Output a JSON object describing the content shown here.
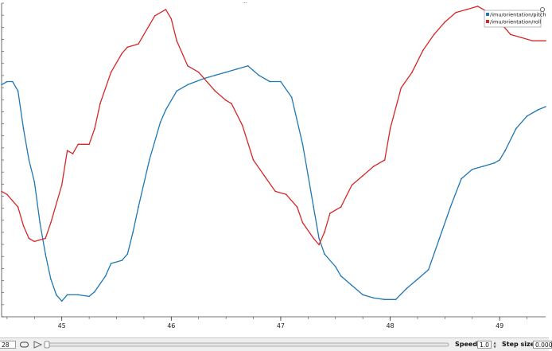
{
  "chart_data": {
    "type": "line",
    "title": "",
    "xlabel": "",
    "ylabel": "",
    "xlim": [
      44.45,
      49.42
    ],
    "ylim": [
      0,
      1
    ],
    "x_ticks": [
      "45",
      "46",
      "47",
      "48",
      "49"
    ],
    "grid": false,
    "legend_position": "top-right",
    "series": [
      {
        "name": "/imu/orientation/pitch",
        "color": "#1f77b4",
        "points": [
          [
            44.45,
            0.74
          ],
          [
            44.5,
            0.75
          ],
          [
            44.55,
            0.75
          ],
          [
            44.6,
            0.72
          ],
          [
            44.65,
            0.6
          ],
          [
            44.7,
            0.5
          ],
          [
            44.75,
            0.43
          ],
          [
            44.8,
            0.3
          ],
          [
            44.85,
            0.2
          ],
          [
            44.9,
            0.12
          ],
          [
            44.95,
            0.07
          ],
          [
            45.0,
            0.05
          ],
          [
            45.05,
            0.07
          ],
          [
            45.15,
            0.07
          ],
          [
            45.25,
            0.065
          ],
          [
            45.3,
            0.08
          ],
          [
            45.4,
            0.13
          ],
          [
            45.45,
            0.17
          ],
          [
            45.55,
            0.18
          ],
          [
            45.6,
            0.2
          ],
          [
            45.65,
            0.27
          ],
          [
            45.7,
            0.35
          ],
          [
            45.8,
            0.5
          ],
          [
            45.9,
            0.62
          ],
          [
            45.95,
            0.66
          ],
          [
            46.05,
            0.72
          ],
          [
            46.15,
            0.74
          ],
          [
            46.3,
            0.76
          ],
          [
            46.4,
            0.77
          ],
          [
            46.5,
            0.78
          ],
          [
            46.6,
            0.79
          ],
          [
            46.7,
            0.8
          ],
          [
            46.8,
            0.77
          ],
          [
            46.9,
            0.75
          ],
          [
            47.0,
            0.75
          ],
          [
            47.1,
            0.7
          ],
          [
            47.2,
            0.55
          ],
          [
            47.25,
            0.45
          ],
          [
            47.3,
            0.35
          ],
          [
            47.35,
            0.25
          ],
          [
            47.4,
            0.2
          ],
          [
            47.5,
            0.16
          ],
          [
            47.55,
            0.13
          ],
          [
            47.65,
            0.1
          ],
          [
            47.75,
            0.07
          ],
          [
            47.85,
            0.06
          ],
          [
            47.95,
            0.055
          ],
          [
            48.05,
            0.055
          ],
          [
            48.15,
            0.09
          ],
          [
            48.25,
            0.12
          ],
          [
            48.35,
            0.15
          ],
          [
            48.45,
            0.25
          ],
          [
            48.55,
            0.35
          ],
          [
            48.65,
            0.44
          ],
          [
            48.75,
            0.47
          ],
          [
            48.85,
            0.48
          ],
          [
            48.95,
            0.49
          ],
          [
            49.0,
            0.5
          ],
          [
            49.05,
            0.53
          ],
          [
            49.15,
            0.6
          ],
          [
            49.25,
            0.64
          ],
          [
            49.35,
            0.66
          ],
          [
            49.42,
            0.67
          ]
        ]
      },
      {
        "name": "/imu/orientation/roll",
        "color": "#d62728",
        "points": [
          [
            44.45,
            0.4
          ],
          [
            44.5,
            0.39
          ],
          [
            44.6,
            0.35
          ],
          [
            44.65,
            0.29
          ],
          [
            44.7,
            0.25
          ],
          [
            44.75,
            0.24
          ],
          [
            44.85,
            0.25
          ],
          [
            44.9,
            0.3
          ],
          [
            45.0,
            0.42
          ],
          [
            45.05,
            0.53
          ],
          [
            45.1,
            0.52
          ],
          [
            45.15,
            0.55
          ],
          [
            45.25,
            0.55
          ],
          [
            45.3,
            0.6
          ],
          [
            45.35,
            0.68
          ],
          [
            45.45,
            0.78
          ],
          [
            45.55,
            0.84
          ],
          [
            45.6,
            0.86
          ],
          [
            45.7,
            0.87
          ],
          [
            45.8,
            0.93
          ],
          [
            45.85,
            0.96
          ],
          [
            45.95,
            0.98
          ],
          [
            46.0,
            0.95
          ],
          [
            46.05,
            0.88
          ],
          [
            46.15,
            0.8
          ],
          [
            46.25,
            0.78
          ],
          [
            46.4,
            0.72
          ],
          [
            46.5,
            0.69
          ],
          [
            46.55,
            0.68
          ],
          [
            46.65,
            0.61
          ],
          [
            46.75,
            0.5
          ],
          [
            46.85,
            0.45
          ],
          [
            46.95,
            0.4
          ],
          [
            47.05,
            0.39
          ],
          [
            47.15,
            0.35
          ],
          [
            47.2,
            0.3
          ],
          [
            47.3,
            0.25
          ],
          [
            47.35,
            0.23
          ],
          [
            47.4,
            0.27
          ],
          [
            47.45,
            0.33
          ],
          [
            47.55,
            0.35
          ],
          [
            47.65,
            0.42
          ],
          [
            47.75,
            0.45
          ],
          [
            47.85,
            0.48
          ],
          [
            47.95,
            0.5
          ],
          [
            48.0,
            0.6
          ],
          [
            48.1,
            0.73
          ],
          [
            48.2,
            0.78
          ],
          [
            48.3,
            0.85
          ],
          [
            48.4,
            0.9
          ],
          [
            48.5,
            0.94
          ],
          [
            48.6,
            0.97
          ],
          [
            48.7,
            0.98
          ],
          [
            48.8,
            0.99
          ],
          [
            48.9,
            0.97
          ],
          [
            49.0,
            0.94
          ],
          [
            49.1,
            0.9
          ],
          [
            49.2,
            0.89
          ],
          [
            49.3,
            0.88
          ],
          [
            49.42,
            0.88
          ]
        ]
      }
    ]
  },
  "toolbar": {
    "time_value": "28",
    "speed_label": "Speed:",
    "speed_value": "1.0",
    "step_label": "Step size:",
    "step_value": "0.000"
  },
  "top_handle": "···"
}
